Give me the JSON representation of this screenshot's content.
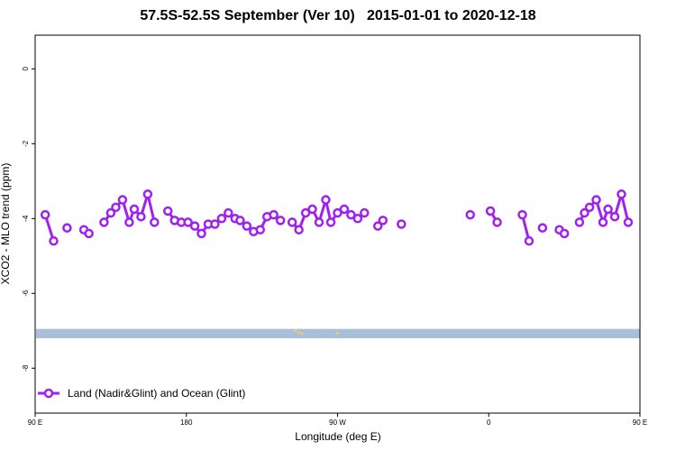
{
  "chart_data": {
    "type": "line",
    "title": "57.5S-52.5S September (Ver 10)   2015-01-01 to 2020-12-18",
    "xlabel": "Longitude (deg E)",
    "ylabel": "XCO2 - MLO trend (ppm)",
    "xlim": [
      90,
      450
    ],
    "ylim": [
      -9.2,
      0.9
    ],
    "x_ticks": [
      {
        "value": 90,
        "label": "90 E"
      },
      {
        "value": 180,
        "label": "180"
      },
      {
        "value": 270,
        "label": "90 W"
      },
      {
        "value": 360,
        "label": "0"
      },
      {
        "value": 450,
        "label": "90 E"
      },
      {
        "value": 540,
        "label": "180"
      }
    ],
    "y_ticks": [
      {
        "value": 0,
        "label": "0"
      },
      {
        "value": -2,
        "label": "-2"
      },
      {
        "value": -4,
        "label": "-4"
      },
      {
        "value": -6,
        "label": "-6"
      },
      {
        "value": -8,
        "label": "-8"
      }
    ],
    "grid": false,
    "legend_position": "bottom-left",
    "series": [
      {
        "name": "Land (Nadir&Glint) and Ocean (Glint)",
        "color": "#a020f0",
        "segments": [
          [
            [
              96,
              -3.9
            ],
            [
              101,
              -4.6
            ]
          ],
          [
            [
              109,
              -4.25
            ]
          ],
          [
            [
              119,
              -4.3
            ],
            [
              122,
              -4.4
            ]
          ],
          [
            [
              131,
              -4.1
            ],
            [
              135,
              -3.85
            ],
            [
              138,
              -3.7
            ],
            [
              142,
              -3.5
            ],
            [
              146,
              -4.1
            ],
            [
              149,
              -3.75
            ],
            [
              153,
              -3.95
            ],
            [
              157,
              -3.35
            ],
            [
              161,
              -4.1
            ]
          ],
          [
            [
              169,
              -3.8
            ],
            [
              173,
              -4.05
            ],
            [
              177,
              -4.1
            ],
            [
              181,
              -4.1
            ],
            [
              185,
              -4.2
            ],
            [
              189,
              -4.4
            ],
            [
              193,
              -4.15
            ],
            [
              197,
              -4.15
            ],
            [
              201,
              -4.0
            ],
            [
              205,
              -3.85
            ],
            [
              209,
              -4.0
            ],
            [
              212,
              -4.05
            ],
            [
              216,
              -4.2
            ],
            [
              220,
              -4.35
            ],
            [
              224,
              -4.3
            ],
            [
              228,
              -3.95
            ],
            [
              232,
              -3.9
            ],
            [
              236,
              -4.05
            ]
          ],
          [
            [
              243,
              -4.1
            ],
            [
              247,
              -4.3
            ],
            [
              251,
              -3.85
            ],
            [
              255,
              -3.75
            ],
            [
              259,
              -4.1
            ],
            [
              263,
              -3.5
            ],
            [
              266,
              -4.1
            ],
            [
              270,
              -3.85
            ],
            [
              274,
              -3.75
            ],
            [
              278,
              -3.9
            ],
            [
              282,
              -4.0
            ],
            [
              286,
              -3.85
            ]
          ],
          [
            [
              294,
              -4.2
            ],
            [
              297,
              -4.05
            ]
          ],
          [
            [
              308,
              -4.15
            ]
          ],
          [
            [
              349,
              -3.9
            ]
          ],
          [
            [
              361,
              -3.8
            ],
            [
              365,
              -4.1
            ]
          ],
          [
            [
              380,
              -3.9
            ],
            [
              384,
              -4.6
            ]
          ],
          [
            [
              392,
              -4.25
            ]
          ],
          [
            [
              402,
              -4.3
            ],
            [
              405,
              -4.4
            ]
          ],
          [
            [
              414,
              -4.1
            ],
            [
              417,
              -3.85
            ],
            [
              420,
              -3.7
            ],
            [
              424,
              -3.5
            ],
            [
              428,
              -4.1
            ],
            [
              431,
              -3.75
            ],
            [
              435,
              -3.95
            ],
            [
              439,
              -3.35
            ],
            [
              443,
              -4.1
            ]
          ]
        ]
      }
    ],
    "band": {
      "y_min": -7.2,
      "y_max": -6.95,
      "color": "#a9bedb"
    },
    "band_marks": [
      {
        "x": 245,
        "y": -7.0,
        "color": "#f0d060"
      },
      {
        "x": 247,
        "y": -7.05,
        "color": "#f0d060"
      },
      {
        "x": 249,
        "y": -7.08,
        "color": "#f0d060"
      },
      {
        "x": 270,
        "y": -7.06,
        "color": "#f0d060"
      }
    ]
  }
}
